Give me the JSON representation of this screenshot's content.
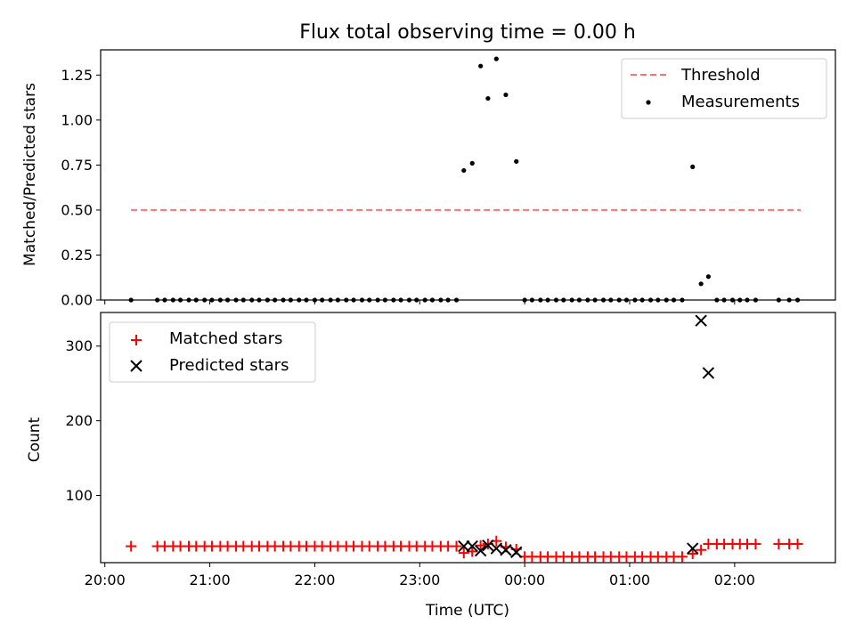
{
  "chart_data": [
    {
      "type": "scatter",
      "title": "Flux total observing time = 0.00 h",
      "xlabel": "",
      "ylabel": "Matched/Predicted stars",
      "xlim": [
        19.96,
        26.96
      ],
      "ylim": [
        0.0,
        1.39
      ],
      "yticks": [
        "0.00",
        "0.25",
        "0.50",
        "0.75",
        "1.00",
        "1.25"
      ],
      "legend": {
        "placement": "top-right",
        "entries": [
          "Threshold",
          "Measurements"
        ]
      },
      "threshold": {
        "name": "Threshold",
        "value": 0.5,
        "x_range": [
          20.25,
          26.63
        ],
        "color": "#ff7070"
      },
      "series": [
        {
          "name": "Measurements",
          "marker": "dot",
          "color": "#000000",
          "points": [
            [
              20.25,
              0.0
            ],
            [
              20.5,
              0.0
            ],
            [
              20.57,
              0.0
            ],
            [
              20.65,
              0.0
            ],
            [
              20.72,
              0.0
            ],
            [
              20.8,
              0.0
            ],
            [
              20.87,
              0.0
            ],
            [
              20.95,
              0.0
            ],
            [
              21.02,
              0.0
            ],
            [
              21.1,
              0.0
            ],
            [
              21.17,
              0.0
            ],
            [
              21.25,
              0.0
            ],
            [
              21.32,
              0.0
            ],
            [
              21.4,
              0.0
            ],
            [
              21.47,
              0.0
            ],
            [
              21.55,
              0.0
            ],
            [
              21.62,
              0.0
            ],
            [
              21.7,
              0.0
            ],
            [
              21.77,
              0.0
            ],
            [
              21.85,
              0.0
            ],
            [
              21.92,
              0.0
            ],
            [
              22.0,
              0.0
            ],
            [
              22.07,
              0.0
            ],
            [
              22.15,
              0.0
            ],
            [
              22.22,
              0.0
            ],
            [
              22.3,
              0.0
            ],
            [
              22.37,
              0.0
            ],
            [
              22.45,
              0.0
            ],
            [
              22.52,
              0.0
            ],
            [
              22.6,
              0.0
            ],
            [
              22.67,
              0.0
            ],
            [
              22.75,
              0.0
            ],
            [
              22.82,
              0.0
            ],
            [
              22.9,
              0.0
            ],
            [
              22.97,
              0.0
            ],
            [
              23.05,
              0.0
            ],
            [
              23.12,
              0.0
            ],
            [
              23.2,
              0.0
            ],
            [
              23.27,
              0.0
            ],
            [
              23.35,
              0.0
            ],
            [
              23.42,
              0.72
            ],
            [
              23.5,
              0.76
            ],
            [
              23.58,
              1.3
            ],
            [
              23.65,
              1.12
            ],
            [
              23.73,
              1.34
            ],
            [
              23.82,
              1.14
            ],
            [
              23.92,
              0.77
            ],
            [
              24.0,
              0.0
            ],
            [
              24.07,
              0.0
            ],
            [
              24.15,
              0.0
            ],
            [
              24.22,
              0.0
            ],
            [
              24.3,
              0.0
            ],
            [
              24.37,
              0.0
            ],
            [
              24.45,
              0.0
            ],
            [
              24.52,
              0.0
            ],
            [
              24.6,
              0.0
            ],
            [
              24.67,
              0.0
            ],
            [
              24.75,
              0.0
            ],
            [
              24.82,
              0.0
            ],
            [
              24.9,
              0.0
            ],
            [
              24.97,
              0.0
            ],
            [
              25.05,
              0.0
            ],
            [
              25.12,
              0.0
            ],
            [
              25.2,
              0.0
            ],
            [
              25.27,
              0.0
            ],
            [
              25.35,
              0.0
            ],
            [
              25.42,
              0.0
            ],
            [
              25.5,
              0.0
            ],
            [
              25.6,
              0.74
            ],
            [
              25.68,
              0.09
            ],
            [
              25.75,
              0.13
            ],
            [
              25.83,
              0.0
            ],
            [
              25.9,
              0.0
            ],
            [
              25.98,
              0.0
            ],
            [
              26.05,
              0.0
            ],
            [
              26.12,
              0.0
            ],
            [
              26.2,
              0.0
            ],
            [
              26.42,
              0.0
            ],
            [
              26.52,
              0.0
            ],
            [
              26.6,
              0.0
            ]
          ]
        }
      ]
    },
    {
      "type": "scatter",
      "title": "",
      "xlabel": "Time (UTC)",
      "ylabel": "Count",
      "xlim": [
        19.96,
        26.96
      ],
      "ylim": [
        10,
        345
      ],
      "yticks": [
        "100",
        "200",
        "300"
      ],
      "xticks": [
        "20:00",
        "21:00",
        "22:00",
        "23:00",
        "00:00",
        "01:00",
        "02:00"
      ],
      "legend": {
        "placement": "top-left",
        "entries": [
          "Matched stars",
          "Predicted stars"
        ]
      },
      "series": [
        {
          "name": "Matched stars",
          "marker": "plus",
          "color": "#ff0000",
          "points": [
            [
              20.25,
              32
            ],
            [
              20.5,
              32
            ],
            [
              20.57,
              32
            ],
            [
              20.65,
              32
            ],
            [
              20.72,
              32
            ],
            [
              20.8,
              32
            ],
            [
              20.87,
              32
            ],
            [
              20.95,
              32
            ],
            [
              21.02,
              32
            ],
            [
              21.1,
              32
            ],
            [
              21.17,
              32
            ],
            [
              21.25,
              32
            ],
            [
              21.32,
              32
            ],
            [
              21.4,
              32
            ],
            [
              21.47,
              32
            ],
            [
              21.55,
              32
            ],
            [
              21.62,
              32
            ],
            [
              21.7,
              32
            ],
            [
              21.77,
              32
            ],
            [
              21.85,
              32
            ],
            [
              21.92,
              32
            ],
            [
              22.0,
              32
            ],
            [
              22.07,
              32
            ],
            [
              22.15,
              32
            ],
            [
              22.22,
              32
            ],
            [
              22.3,
              32
            ],
            [
              22.37,
              32
            ],
            [
              22.45,
              32
            ],
            [
              22.52,
              32
            ],
            [
              22.6,
              32
            ],
            [
              22.67,
              32
            ],
            [
              22.75,
              32
            ],
            [
              22.82,
              32
            ],
            [
              22.9,
              32
            ],
            [
              22.97,
              32
            ],
            [
              23.05,
              32
            ],
            [
              23.12,
              32
            ],
            [
              23.2,
              32
            ],
            [
              23.27,
              32
            ],
            [
              23.35,
              32
            ],
            [
              23.42,
              23
            ],
            [
              23.5,
              25
            ],
            [
              23.58,
              33
            ],
            [
              23.65,
              35
            ],
            [
              23.73,
              39
            ],
            [
              23.82,
              31
            ],
            [
              23.92,
              28
            ],
            [
              24.0,
              18
            ],
            [
              24.07,
              18
            ],
            [
              24.15,
              18
            ],
            [
              24.22,
              18
            ],
            [
              24.3,
              18
            ],
            [
              24.37,
              18
            ],
            [
              24.45,
              18
            ],
            [
              24.52,
              18
            ],
            [
              24.6,
              18
            ],
            [
              24.67,
              18
            ],
            [
              24.75,
              18
            ],
            [
              24.82,
              18
            ],
            [
              24.9,
              18
            ],
            [
              24.97,
              18
            ],
            [
              25.05,
              18
            ],
            [
              25.12,
              18
            ],
            [
              25.2,
              18
            ],
            [
              25.27,
              18
            ],
            [
              25.35,
              18
            ],
            [
              25.42,
              18
            ],
            [
              25.5,
              18
            ],
            [
              25.6,
              22
            ],
            [
              25.68,
              27
            ],
            [
              25.75,
              35
            ],
            [
              25.83,
              35
            ],
            [
              25.9,
              35
            ],
            [
              25.98,
              35
            ],
            [
              26.05,
              35
            ],
            [
              26.12,
              35
            ],
            [
              26.2,
              35
            ],
            [
              26.42,
              35
            ],
            [
              26.52,
              35
            ],
            [
              26.6,
              35
            ]
          ]
        },
        {
          "name": "Predicted stars",
          "marker": "x",
          "color": "#000000",
          "points": [
            [
              23.42,
              32
            ],
            [
              23.5,
              32
            ],
            [
              23.58,
              26
            ],
            [
              23.65,
              33
            ],
            [
              23.73,
              29
            ],
            [
              23.82,
              27
            ],
            [
              23.92,
              24
            ],
            [
              25.6,
              29
            ],
            [
              25.68,
              334
            ],
            [
              25.75,
              264
            ]
          ]
        }
      ]
    }
  ]
}
